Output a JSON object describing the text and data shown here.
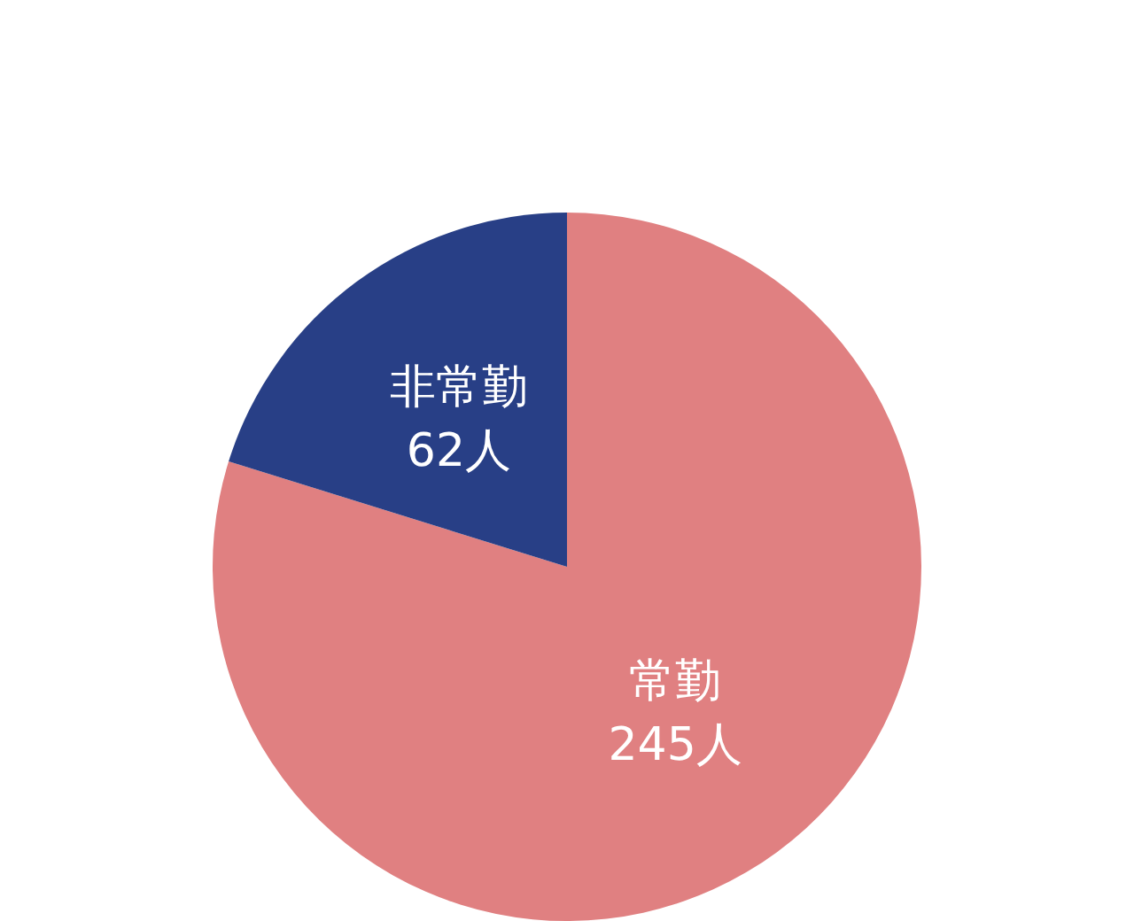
{
  "chart_data": {
    "type": "pie",
    "categories": [
      "常勤",
      "非常勤"
    ],
    "values": [
      245,
      62
    ],
    "colors": [
      "#e08081",
      "#283f86"
    ],
    "value_labels": [
      "245人",
      "62人"
    ],
    "legend": false
  }
}
